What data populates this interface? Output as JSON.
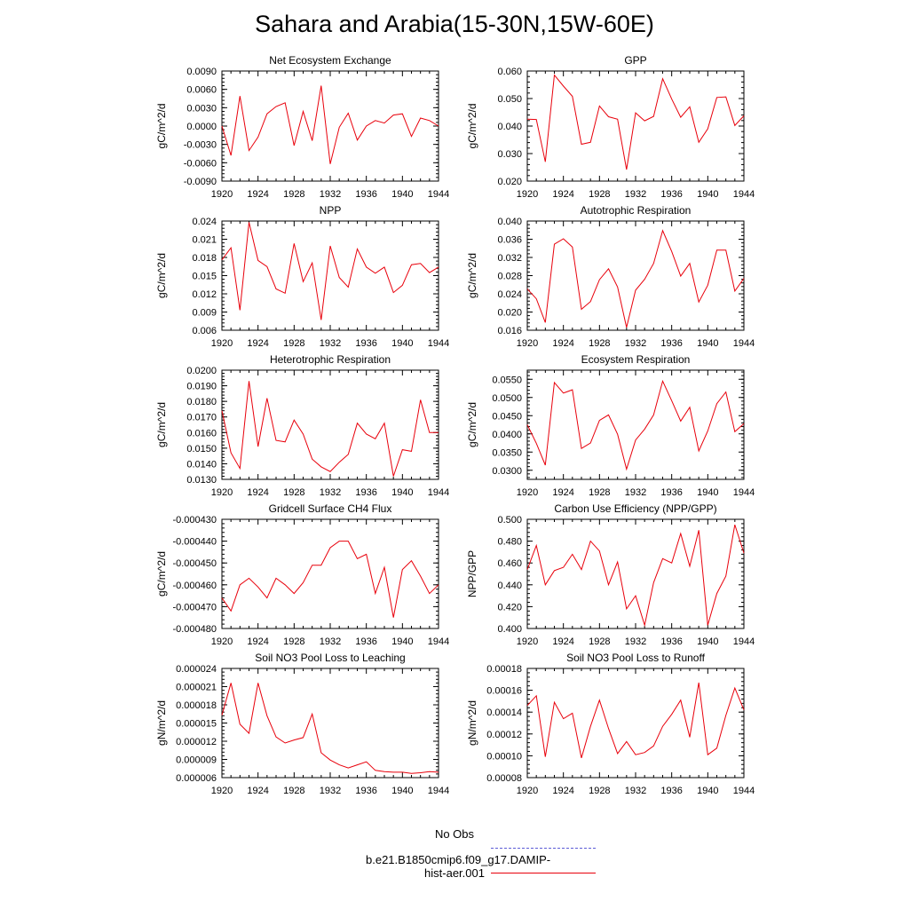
{
  "title": "Sahara and Arabia(15-30N,15W-60E)",
  "legend": {
    "obs_label": "No Obs",
    "obs_color": "#5b5bd6",
    "model_label": "b.e21.B1850cmip6.f09_g17.DAMIP-hist-aer.001",
    "model_color": "#e8000b"
  },
  "x_ticks": [
    "1920",
    "1924",
    "1928",
    "1932",
    "1936",
    "1940",
    "1944"
  ],
  "chart_data": [
    {
      "type": "line",
      "title": "Net Ecosystem Exchange",
      "ylabel": "gC/m^2/d",
      "xlim": [
        1920,
        1944
      ],
      "ylim": [
        -0.009,
        0.009
      ],
      "yticks": [
        -0.009,
        -0.006,
        -0.003,
        0.0,
        0.003,
        0.006,
        0.009
      ],
      "ytick_labels": [
        "-0.0090",
        "-0.0060",
        "-0.0030",
        "0.0000",
        "0.0030",
        "0.0060",
        "0.0090"
      ],
      "x": [
        1920,
        1921,
        1922,
        1923,
        1924,
        1925,
        1926,
        1927,
        1928,
        1929,
        1930,
        1931,
        1932,
        1933,
        1934,
        1935,
        1936,
        1937,
        1938,
        1939,
        1940,
        1941,
        1942,
        1943,
        1944
      ],
      "values": [
        0.0,
        -0.0048,
        0.0049,
        -0.004,
        -0.0018,
        0.002,
        0.0032,
        0.0038,
        -0.0032,
        0.0024,
        -0.0024,
        0.0066,
        -0.0062,
        -0.0002,
        0.0021,
        -0.0023,
        0.0,
        0.0009,
        0.0005,
        0.0018,
        0.002,
        -0.0017,
        0.0013,
        0.0009,
        0.0
      ]
    },
    {
      "type": "line",
      "title": "GPP",
      "ylabel": "gC/m^2/d",
      "xlim": [
        1920,
        1944
      ],
      "ylim": [
        0.02,
        0.06
      ],
      "yticks": [
        0.02,
        0.03,
        0.04,
        0.05,
        0.06
      ],
      "ytick_labels": [
        "0.020",
        "0.030",
        "0.040",
        "0.050",
        "0.060"
      ],
      "x": [
        1920,
        1921,
        1922,
        1923,
        1924,
        1925,
        1926,
        1927,
        1928,
        1929,
        1930,
        1931,
        1932,
        1933,
        1934,
        1935,
        1936,
        1937,
        1938,
        1939,
        1940,
        1941,
        1942,
        1943,
        1944
      ],
      "values": [
        0.0425,
        0.0424,
        0.027,
        0.0585,
        0.0545,
        0.0508,
        0.0334,
        0.0341,
        0.0473,
        0.0434,
        0.0425,
        0.0242,
        0.0448,
        0.0419,
        0.0435,
        0.0572,
        0.0498,
        0.0432,
        0.047,
        0.0341,
        0.039,
        0.0504,
        0.0506,
        0.0402,
        0.0437
      ]
    },
    {
      "type": "line",
      "title": "NPP",
      "ylabel": "gC/m^2/d",
      "xlim": [
        1920,
        1944
      ],
      "ylim": [
        0.006,
        0.024
      ],
      "yticks": [
        0.006,
        0.009,
        0.012,
        0.015,
        0.018,
        0.021,
        0.024
      ],
      "ytick_labels": [
        "0.006",
        "0.009",
        "0.012",
        "0.015",
        "0.018",
        "0.021",
        "0.024"
      ],
      "x": [
        1920,
        1921,
        1922,
        1923,
        1924,
        1925,
        1926,
        1927,
        1928,
        1929,
        1930,
        1931,
        1932,
        1933,
        1934,
        1935,
        1936,
        1937,
        1938,
        1939,
        1940,
        1941,
        1942,
        1943,
        1944
      ],
      "values": [
        0.0176,
        0.0196,
        0.0093,
        0.0238,
        0.0175,
        0.0165,
        0.0128,
        0.0121,
        0.0203,
        0.014,
        0.0171,
        0.0077,
        0.0199,
        0.0147,
        0.0131,
        0.0194,
        0.0164,
        0.0154,
        0.0164,
        0.0122,
        0.0134,
        0.0168,
        0.017,
        0.0155,
        0.0164
      ]
    },
    {
      "type": "line",
      "title": "Autotrophic Respiration",
      "ylabel": "gC/m^2/d",
      "xlim": [
        1920,
        1944
      ],
      "ylim": [
        0.016,
        0.04
      ],
      "yticks": [
        0.016,
        0.02,
        0.024,
        0.028,
        0.032,
        0.036,
        0.04
      ],
      "ytick_labels": [
        "0.016",
        "0.020",
        "0.024",
        "0.028",
        "0.032",
        "0.036",
        "0.040"
      ],
      "x": [
        1920,
        1921,
        1922,
        1923,
        1924,
        1925,
        1926,
        1927,
        1928,
        1929,
        1930,
        1931,
        1932,
        1933,
        1934,
        1935,
        1936,
        1937,
        1938,
        1939,
        1940,
        1941,
        1942,
        1943,
        1944
      ],
      "values": [
        0.0251,
        0.0229,
        0.0177,
        0.0349,
        0.0361,
        0.0343,
        0.0206,
        0.0223,
        0.0271,
        0.0295,
        0.0255,
        0.0166,
        0.0248,
        0.0272,
        0.0307,
        0.0379,
        0.0333,
        0.0279,
        0.0307,
        0.0222,
        0.0259,
        0.0336,
        0.0336,
        0.0246,
        0.0274
      ]
    },
    {
      "type": "line",
      "title": "Heterotrophic Respiration",
      "ylabel": "gC/m^2/d",
      "xlim": [
        1920,
        1944
      ],
      "ylim": [
        0.013,
        0.02
      ],
      "yticks": [
        0.013,
        0.014,
        0.015,
        0.016,
        0.017,
        0.018,
        0.019,
        0.02
      ],
      "ytick_labels": [
        "0.0130",
        "0.0140",
        "0.0150",
        "0.0160",
        "0.0170",
        "0.0180",
        "0.0190",
        "0.0200"
      ],
      "x": [
        1920,
        1921,
        1922,
        1923,
        1924,
        1925,
        1926,
        1927,
        1928,
        1929,
        1930,
        1931,
        1932,
        1933,
        1934,
        1935,
        1936,
        1937,
        1938,
        1939,
        1940,
        1941,
        1942,
        1943,
        1944
      ],
      "values": [
        0.0174,
        0.0147,
        0.0137,
        0.0193,
        0.0151,
        0.0182,
        0.0155,
        0.0154,
        0.0168,
        0.0159,
        0.0143,
        0.0138,
        0.0135,
        0.0141,
        0.0146,
        0.0166,
        0.0159,
        0.0156,
        0.0166,
        0.0132,
        0.0149,
        0.0148,
        0.0181,
        0.016,
        0.016
      ]
    },
    {
      "type": "line",
      "title": "Ecosystem Respiration",
      "ylabel": "gC/m^2/d",
      "xlim": [
        1920,
        1944
      ],
      "ylim": [
        0.0275,
        0.0575
      ],
      "yticks": [
        0.03,
        0.035,
        0.04,
        0.045,
        0.05,
        0.055
      ],
      "ytick_labels": [
        "0.0300",
        "0.0350",
        "0.0400",
        "0.0450",
        "0.0500",
        "0.0550"
      ],
      "x": [
        1920,
        1921,
        1922,
        1923,
        1924,
        1925,
        1926,
        1927,
        1928,
        1929,
        1930,
        1931,
        1932,
        1933,
        1934,
        1935,
        1936,
        1937,
        1938,
        1939,
        1940,
        1941,
        1942,
        1943,
        1944
      ],
      "values": [
        0.0425,
        0.0374,
        0.0314,
        0.0541,
        0.0512,
        0.0521,
        0.036,
        0.0375,
        0.0437,
        0.0452,
        0.0399,
        0.0303,
        0.0383,
        0.0413,
        0.0452,
        0.0545,
        0.0491,
        0.0435,
        0.0473,
        0.0353,
        0.0408,
        0.0483,
        0.0515,
        0.0406,
        0.0428
      ]
    },
    {
      "type": "line",
      "title": "Gridcell Surface CH4 Flux",
      "ylabel": "gC/m^2/d",
      "xlim": [
        1920,
        1944
      ],
      "ylim": [
        -0.00048,
        -0.00043
      ],
      "yticks": [
        -0.00048,
        -0.00047,
        -0.00046,
        -0.00045,
        -0.00044,
        -0.00043
      ],
      "ytick_labels": [
        "-0.000480",
        "-0.000470",
        "-0.000460",
        "-0.000450",
        "-0.000440",
        "-0.000430"
      ],
      "x": [
        1920,
        1921,
        1922,
        1923,
        1924,
        1925,
        1926,
        1927,
        1928,
        1929,
        1930,
        1931,
        1932,
        1933,
        1934,
        1935,
        1936,
        1937,
        1938,
        1939,
        1940,
        1941,
        1942,
        1943,
        1944
      ],
      "values": [
        -0.000466,
        -0.000472,
        -0.00046,
        -0.000457,
        -0.000461,
        -0.000466,
        -0.000457,
        -0.00046,
        -0.000464,
        -0.000459,
        -0.000451,
        -0.000451,
        -0.000443,
        -0.00044,
        -0.00044,
        -0.000448,
        -0.000446,
        -0.000464,
        -0.000452,
        -0.000475,
        -0.000453,
        -0.000449,
        -0.000456,
        -0.000464,
        -0.00046
      ]
    },
    {
      "type": "line",
      "title": "Carbon Use Efficiency (NPP/GPP)",
      "ylabel": "NPP/GPP",
      "xlim": [
        1920,
        1944
      ],
      "ylim": [
        0.4,
        0.5
      ],
      "yticks": [
        0.4,
        0.42,
        0.44,
        0.46,
        0.48,
        0.5
      ],
      "ytick_labels": [
        "0.400",
        "0.420",
        "0.440",
        "0.460",
        "0.480",
        "0.500"
      ],
      "x": [
        1920,
        1921,
        1922,
        1923,
        1924,
        1925,
        1926,
        1927,
        1928,
        1929,
        1930,
        1931,
        1932,
        1933,
        1934,
        1935,
        1936,
        1937,
        1938,
        1939,
        1940,
        1941,
        1942,
        1943,
        1944
      ],
      "values": [
        0.454,
        0.476,
        0.44,
        0.453,
        0.456,
        0.468,
        0.454,
        0.48,
        0.471,
        0.44,
        0.461,
        0.418,
        0.43,
        0.403,
        0.442,
        0.464,
        0.46,
        0.487,
        0.457,
        0.49,
        0.403,
        0.432,
        0.448,
        0.495,
        0.469
      ]
    },
    {
      "type": "line",
      "title": "Soil NO3 Pool Loss to Leaching",
      "ylabel": "gN/m^2/d",
      "xlim": [
        1920,
        1944
      ],
      "ylim": [
        6e-06,
        2.4e-05
      ],
      "yticks": [
        6e-06,
        9e-06,
        1.2e-05,
        1.5e-05,
        1.8e-05,
        2.1e-05,
        2.4e-05
      ],
      "ytick_labels": [
        "0.000006",
        "0.000009",
        "0.000012",
        "0.000015",
        "0.000018",
        "0.000021",
        "0.000024"
      ],
      "x": [
        1920,
        1921,
        1922,
        1923,
        1924,
        1925,
        1926,
        1927,
        1928,
        1929,
        1930,
        1931,
        1932,
        1933,
        1934,
        1935,
        1936,
        1937,
        1938,
        1939,
        1940,
        1941,
        1942,
        1943,
        1944
      ],
      "values": [
        1.63e-05,
        2.16e-05,
        1.48e-05,
        1.33e-05,
        2.16e-05,
        1.62e-05,
        1.27e-05,
        1.17e-05,
        1.22e-05,
        1.26e-05,
        1.65e-05,
        1.01e-05,
        8.9e-06,
        8.1e-06,
        7.6e-06,
        8.1e-06,
        8.6e-06,
        7.2e-06,
        7e-06,
        6.9e-06,
        6.9e-06,
        6.7e-06,
        6.8e-06,
        7e-06,
        6.9e-06
      ]
    },
    {
      "type": "line",
      "title": "Soil NO3 Pool Loss to Runoff",
      "ylabel": "gN/m^2/d",
      "xlim": [
        1920,
        1944
      ],
      "ylim": [
        8e-05,
        0.00018
      ],
      "yticks": [
        8e-05,
        0.0001,
        0.00012,
        0.00014,
        0.00016,
        0.00018
      ],
      "ytick_labels": [
        "0.00008",
        "0.00010",
        "0.00012",
        "0.00014",
        "0.00016",
        "0.00018"
      ],
      "x": [
        1920,
        1921,
        1922,
        1923,
        1924,
        1925,
        1926,
        1927,
        1928,
        1929,
        1930,
        1931,
        1932,
        1933,
        1934,
        1935,
        1936,
        1937,
        1938,
        1939,
        1940,
        1941,
        1942,
        1943,
        1944
      ],
      "values": [
        0.000146,
        0.000155,
        9.9e-05,
        0.000149,
        0.000134,
        0.000139,
        9.8e-05,
        0.000127,
        0.000151,
        0.000125,
        0.000102,
        0.000113,
        0.000101,
        0.000103,
        0.000109,
        0.000127,
        0.000138,
        0.000151,
        0.000117,
        0.000167,
        0.000101,
        0.000107,
        0.000137,
        0.000162,
        0.000142
      ]
    }
  ]
}
